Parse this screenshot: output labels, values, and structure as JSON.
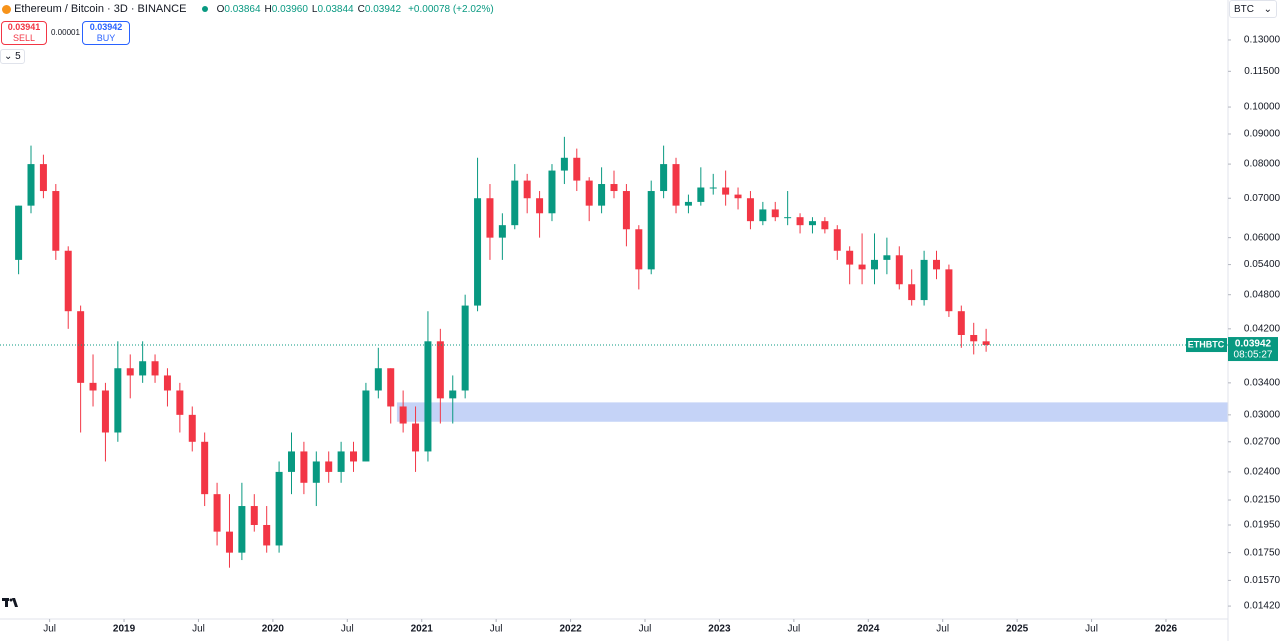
{
  "header": {
    "symbol": "Ethereum / Bitcoin · 3D · BINANCE",
    "ohlc": [
      {
        "label": "O",
        "value": "0.03864"
      },
      {
        "label": "H",
        "value": "0.03960"
      },
      {
        "label": "L",
        "value": "0.03844"
      },
      {
        "label": "C",
        "value": "0.03942"
      }
    ],
    "change": "+0.00078 (+2.02%)",
    "sell_price": "0.03941",
    "sell_label": "SELL",
    "spread": "0.00001",
    "buy_price": "0.03942",
    "buy_label": "BUY",
    "indicators": "5",
    "currency": "BTC"
  },
  "chart_data": {
    "type": "candlestick",
    "log_scale": true,
    "up_color": "#089981",
    "down_color": "#f23645",
    "xlim": [
      "2018-03",
      "2026-06"
    ],
    "ylim": [
      0.0135,
      0.152
    ],
    "yticks": [
      {
        "value": 0.13,
        "label": "0.13000"
      },
      {
        "value": 0.115,
        "label": "0.11500"
      },
      {
        "value": 0.1,
        "label": "0.10000"
      },
      {
        "value": 0.09,
        "label": "0.09000"
      },
      {
        "value": 0.08,
        "label": "0.08000"
      },
      {
        "value": 0.07,
        "label": "0.07000"
      },
      {
        "value": 0.06,
        "label": "0.06000"
      },
      {
        "value": 0.054,
        "label": "0.05400"
      },
      {
        "value": 0.048,
        "label": "0.04800"
      },
      {
        "value": 0.042,
        "label": "0.04200"
      },
      {
        "value": 0.034,
        "label": "0.03400"
      },
      {
        "value": 0.03,
        "label": "0.03000"
      },
      {
        "value": 0.027,
        "label": "0.02700"
      },
      {
        "value": 0.024,
        "label": "0.02400"
      },
      {
        "value": 0.0215,
        "label": "0.02150"
      },
      {
        "value": 0.0195,
        "label": "0.01950"
      },
      {
        "value": 0.0175,
        "label": "0.01750"
      },
      {
        "value": 0.0157,
        "label": "0.01570"
      },
      {
        "value": 0.0142,
        "label": "0.01420"
      }
    ],
    "xticks": [
      {
        "value": "2018-07",
        "label": "Jul"
      },
      {
        "value": "2019-01",
        "label": "2019"
      },
      {
        "value": "2019-07",
        "label": "Jul"
      },
      {
        "value": "2020-01",
        "label": "2020"
      },
      {
        "value": "2020-07",
        "label": "Jul"
      },
      {
        "value": "2021-01",
        "label": "2021"
      },
      {
        "value": "2021-07",
        "label": "Jul"
      },
      {
        "value": "2022-01",
        "label": "2022"
      },
      {
        "value": "2022-07",
        "label": "Jul"
      },
      {
        "value": "2023-01",
        "label": "2023"
      },
      {
        "value": "2023-07",
        "label": "Jul"
      },
      {
        "value": "2024-01",
        "label": "2024"
      },
      {
        "value": "2024-07",
        "label": "Jul"
      },
      {
        "value": "2025-01",
        "label": "2025"
      },
      {
        "value": "2025-07",
        "label": "Jul"
      },
      {
        "value": "2026-01",
        "label": "2026"
      }
    ],
    "x": [
      "2018-04",
      "2018-05",
      "2018-06",
      "2018-07",
      "2018-08",
      "2018-09",
      "2018-10",
      "2018-11",
      "2018-12",
      "2019-01",
      "2019-02",
      "2019-03",
      "2019-04",
      "2019-05",
      "2019-06",
      "2019-07",
      "2019-08",
      "2019-09",
      "2019-10",
      "2019-11",
      "2019-12",
      "2020-01",
      "2020-02",
      "2020-03",
      "2020-04",
      "2020-05",
      "2020-06",
      "2020-07",
      "2020-08",
      "2020-09",
      "2020-10",
      "2020-11",
      "2020-12",
      "2021-01",
      "2021-02",
      "2021-03",
      "2021-04",
      "2021-05",
      "2021-06",
      "2021-07",
      "2021-08",
      "2021-09",
      "2021-10",
      "2021-11",
      "2021-12",
      "2022-01",
      "2022-02",
      "2022-03",
      "2022-04",
      "2022-05",
      "2022-06",
      "2022-07",
      "2022-08",
      "2022-09",
      "2022-10",
      "2022-11",
      "2022-12",
      "2023-01",
      "2023-02",
      "2023-03",
      "2023-04",
      "2023-05",
      "2023-06",
      "2023-07",
      "2023-08",
      "2023-09",
      "2023-10",
      "2023-11",
      "2023-12",
      "2024-01",
      "2024-02",
      "2024-03",
      "2024-04",
      "2024-05",
      "2024-06",
      "2024-07",
      "2024-08",
      "2024-09",
      "2024-10"
    ],
    "open": [
      0.055,
      0.068,
      0.08,
      0.072,
      0.057,
      0.045,
      0.034,
      0.033,
      0.028,
      0.036,
      0.035,
      0.037,
      0.035,
      0.033,
      0.03,
      0.027,
      0.022,
      0.019,
      0.0175,
      0.021,
      0.0195,
      0.018,
      0.024,
      0.026,
      0.023,
      0.025,
      0.024,
      0.026,
      0.025,
      0.033,
      0.036,
      0.031,
      0.029,
      0.026,
      0.04,
      0.032,
      0.033,
      0.046,
      0.07,
      0.06,
      0.063,
      0.075,
      0.07,
      0.066,
      0.078,
      0.082,
      0.075,
      0.068,
      0.074,
      0.072,
      0.062,
      0.053,
      0.072,
      0.08,
      0.068,
      0.069,
      0.073,
      0.073,
      0.071,
      0.07,
      0.064,
      0.067,
      0.065,
      0.065,
      0.063,
      0.064,
      0.062,
      0.057,
      0.054,
      0.053,
      0.055,
      0.056,
      0.05,
      0.047,
      0.055,
      0.053,
      0.045,
      0.041,
      0.04
    ],
    "high": [
      0.068,
      0.086,
      0.083,
      0.074,
      0.058,
      0.046,
      0.038,
      0.034,
      0.04,
      0.038,
      0.04,
      0.038,
      0.036,
      0.034,
      0.031,
      0.028,
      0.023,
      0.022,
      0.023,
      0.022,
      0.021,
      0.025,
      0.028,
      0.027,
      0.026,
      0.026,
      0.027,
      0.027,
      0.034,
      0.039,
      0.036,
      0.033,
      0.031,
      0.045,
      0.042,
      0.035,
      0.048,
      0.082,
      0.074,
      0.066,
      0.08,
      0.077,
      0.072,
      0.08,
      0.089,
      0.085,
      0.076,
      0.079,
      0.078,
      0.074,
      0.063,
      0.075,
      0.086,
      0.082,
      0.071,
      0.079,
      0.077,
      0.078,
      0.073,
      0.072,
      0.069,
      0.069,
      0.072,
      0.066,
      0.065,
      0.065,
      0.063,
      0.058,
      0.061,
      0.061,
      0.06,
      0.058,
      0.053,
      0.057,
      0.057,
      0.054,
      0.046,
      0.043,
      0.042
    ],
    "low": [
      0.052,
      0.066,
      0.07,
      0.055,
      0.042,
      0.028,
      0.031,
      0.025,
      0.027,
      0.032,
      0.034,
      0.034,
      0.031,
      0.028,
      0.026,
      0.021,
      0.018,
      0.0165,
      0.017,
      0.019,
      0.0175,
      0.0175,
      0.022,
      0.022,
      0.021,
      0.023,
      0.023,
      0.024,
      0.025,
      0.032,
      0.029,
      0.028,
      0.024,
      0.025,
      0.029,
      0.029,
      0.032,
      0.045,
      0.055,
      0.055,
      0.062,
      0.066,
      0.06,
      0.064,
      0.074,
      0.072,
      0.064,
      0.066,
      0.07,
      0.058,
      0.049,
      0.052,
      0.07,
      0.066,
      0.066,
      0.068,
      0.071,
      0.068,
      0.067,
      0.062,
      0.063,
      0.064,
      0.063,
      0.061,
      0.061,
      0.061,
      0.055,
      0.05,
      0.05,
      0.05,
      0.052,
      0.049,
      0.046,
      0.046,
      0.051,
      0.044,
      0.039,
      0.038,
      0.0384
    ],
    "close": [
      0.068,
      0.08,
      0.072,
      0.057,
      0.045,
      0.034,
      0.033,
      0.028,
      0.036,
      0.035,
      0.037,
      0.035,
      0.033,
      0.03,
      0.027,
      0.022,
      0.019,
      0.0175,
      0.021,
      0.0195,
      0.018,
      0.024,
      0.026,
      0.023,
      0.025,
      0.024,
      0.026,
      0.025,
      0.033,
      0.036,
      0.031,
      0.029,
      0.026,
      0.04,
      0.032,
      0.033,
      0.046,
      0.07,
      0.06,
      0.063,
      0.075,
      0.07,
      0.066,
      0.078,
      0.082,
      0.075,
      0.068,
      0.074,
      0.072,
      0.062,
      0.053,
      0.072,
      0.08,
      0.068,
      0.069,
      0.073,
      0.073,
      0.071,
      0.07,
      0.064,
      0.067,
      0.065,
      0.065,
      0.063,
      0.064,
      0.062,
      0.057,
      0.054,
      0.053,
      0.055,
      0.056,
      0.05,
      0.047,
      0.055,
      0.053,
      0.045,
      0.041,
      0.04,
      0.03942
    ],
    "zone": {
      "from": "2020-11",
      "low": 0.0292,
      "high": 0.0315,
      "color": "#c5d3f7"
    },
    "price_tag": {
      "symbol": "ETHBTC",
      "countdown": "08:05:27"
    }
  }
}
